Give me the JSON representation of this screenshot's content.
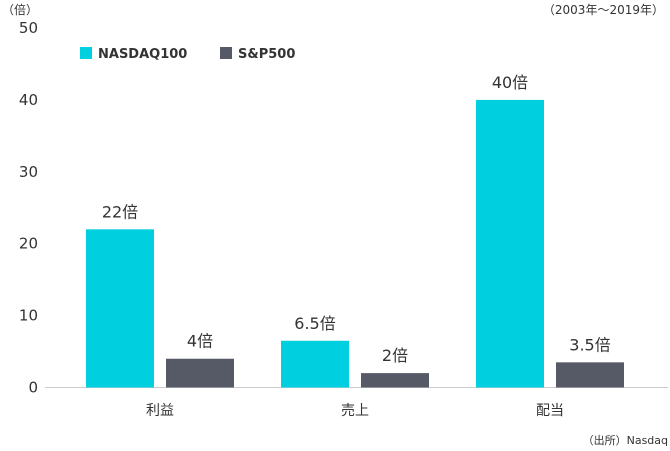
{
  "chart_data": {
    "type": "bar",
    "y_unit_label": "（倍）",
    "period_label": "（2003年〜2019年）",
    "source_label": "（出所）Nasdaq",
    "categories": [
      "利益",
      "売上",
      "配当"
    ],
    "series": [
      {
        "name": "NASDAQ100",
        "color": "#00cfe0",
        "values": [
          22,
          6.5,
          40
        ],
        "value_labels": [
          "22倍",
          "6.5倍",
          "40倍"
        ]
      },
      {
        "name": "S&P500",
        "color": "#555a66",
        "values": [
          4,
          2,
          3.5
        ],
        "value_labels": [
          "4倍",
          "2倍",
          "3.5倍"
        ]
      }
    ],
    "ylim": [
      0,
      50
    ],
    "yticks": [
      0,
      10,
      20,
      30,
      40,
      50
    ],
    "grid": false,
    "legend_position": "top-left"
  }
}
